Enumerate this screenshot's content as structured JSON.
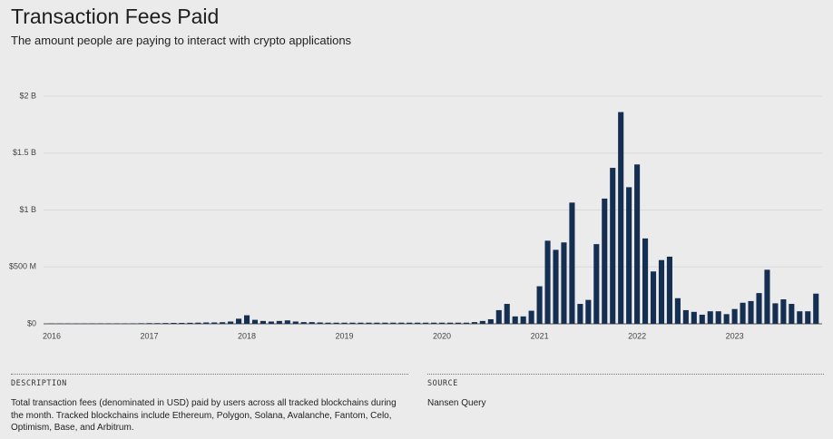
{
  "chart_data": {
    "type": "bar",
    "title": "Transaction Fees Paid",
    "subtitle": "The amount people are paying to interact with crypto applications",
    "color": "#152f52",
    "grid": true,
    "categories": [
      "2016",
      null,
      null,
      null,
      null,
      null,
      null,
      null,
      null,
      null,
      null,
      null,
      "2017",
      null,
      null,
      null,
      null,
      null,
      null,
      null,
      null,
      null,
      null,
      null,
      "2018",
      null,
      null,
      null,
      null,
      null,
      null,
      null,
      null,
      null,
      null,
      null,
      "2019",
      null,
      null,
      null,
      null,
      null,
      null,
      null,
      null,
      null,
      null,
      null,
      "2020",
      null,
      null,
      null,
      null,
      null,
      null,
      null,
      null,
      null,
      null,
      null,
      "2021",
      null,
      null,
      null,
      null,
      null,
      null,
      null,
      null,
      null,
      null,
      null,
      "2022",
      null,
      null,
      null,
      null,
      null,
      null,
      null,
      null,
      null,
      null,
      null,
      "2023",
      null,
      null,
      null,
      null,
      null,
      null,
      null,
      null,
      null,
      null
    ],
    "values": [
      3000000,
      3000000,
      3000000,
      3000000,
      3000000,
      4000000,
      4000000,
      4000000,
      4000000,
      4000000,
      4000000,
      5000000,
      6000000,
      6000000,
      7000000,
      8000000,
      8000000,
      9000000,
      10000000,
      12000000,
      12000000,
      14000000,
      20000000,
      45000000,
      75000000,
      35000000,
      25000000,
      20000000,
      25000000,
      30000000,
      20000000,
      15000000,
      15000000,
      12000000,
      10000000,
      10000000,
      10000000,
      10000000,
      10000000,
      10000000,
      10000000,
      10000000,
      10000000,
      10000000,
      10000000,
      10000000,
      10000000,
      10000000,
      10000000,
      10000000,
      10000000,
      10000000,
      15000000,
      25000000,
      40000000,
      120000000,
      175000000,
      65000000,
      65000000,
      115000000,
      330000000,
      730000000,
      650000000,
      715000000,
      1065000000,
      175000000,
      210000000,
      700000000,
      1100000000,
      1370000000,
      1860000000,
      1200000000,
      1400000000,
      750000000,
      460000000,
      560000000,
      590000000,
      225000000,
      120000000,
      105000000,
      80000000,
      110000000,
      110000000,
      85000000,
      130000000,
      185000000,
      200000000,
      270000000,
      475000000,
      180000000,
      215000000,
      175000000,
      110000000,
      110000000,
      265000000
    ],
    "ylim": [
      0,
      2000000000
    ],
    "yticks": [
      {
        "value": 0,
        "label": "$0"
      },
      {
        "value": 500000000,
        "label": "$500 M"
      },
      {
        "value": 1000000000,
        "label": "$1 B"
      },
      {
        "value": 1500000000,
        "label": "$1.5 B"
      },
      {
        "value": 2000000000,
        "label": "$2 B"
      }
    ]
  },
  "notes": {
    "description_label": "DESCRIPTION",
    "description": "Total transaction fees (denominated in USD) paid by users across all tracked blockchains during the month. Tracked blockchains include Ethereum, Polygon, Solana, Avalanche, Fantom, Celo, Optimism, Base, and Arbitrum.",
    "source_label": "SOURCE",
    "source": "Nansen Query"
  }
}
